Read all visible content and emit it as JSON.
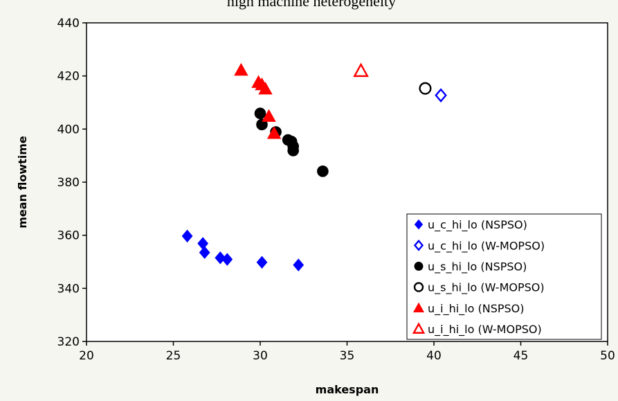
{
  "chart_data": {
    "type": "scatter",
    "title": "high machine heterogeneity",
    "xlabel": "makespan",
    "ylabel": "mean flowtime",
    "xlim": [
      20,
      50
    ],
    "ylim": [
      320,
      440
    ],
    "xticks": [
      20,
      25,
      30,
      35,
      40,
      45,
      50
    ],
    "yticks": [
      320,
      340,
      360,
      380,
      400,
      420,
      440
    ],
    "grid": false,
    "legend_position": "bottom-right",
    "series": [
      {
        "name": "u_c_hi_lo (NSPSO)",
        "marker": "diamond",
        "filled": true,
        "color": "#0000ff",
        "points": [
          [
            25.8,
            359.7
          ],
          [
            26.7,
            356.9
          ],
          [
            26.8,
            353.5
          ],
          [
            27.7,
            351.5
          ],
          [
            28.1,
            350.9
          ],
          [
            30.1,
            349.8
          ],
          [
            32.2,
            348.8
          ]
        ]
      },
      {
        "name": "u_c_hi_lo (W-MOPSO)",
        "marker": "diamond",
        "filled": false,
        "color": "#0000ff",
        "points": [
          [
            40.4,
            412.7
          ]
        ]
      },
      {
        "name": "u_s_hi_lo (NSPSO)",
        "marker": "circle",
        "filled": true,
        "color": "#000000",
        "points": [
          [
            30.0,
            405.9
          ],
          [
            30.1,
            401.7
          ],
          [
            30.9,
            398.9
          ],
          [
            31.6,
            395.9
          ],
          [
            31.8,
            395.3
          ],
          [
            31.9,
            393.5
          ],
          [
            31.9,
            391.9
          ],
          [
            33.6,
            384.1
          ]
        ]
      },
      {
        "name": "u_s_hi_lo (W-MOPSO)",
        "marker": "circle",
        "filled": false,
        "color": "#000000",
        "points": [
          [
            39.5,
            415.3
          ]
        ]
      },
      {
        "name": "u_i_hi_lo (NSPSO)",
        "marker": "triangle",
        "filled": true,
        "color": "#ff0000",
        "points": [
          [
            28.9,
            422.2
          ],
          [
            29.9,
            417.6
          ],
          [
            30.1,
            416.7
          ],
          [
            30.3,
            415.1
          ],
          [
            30.5,
            404.8
          ],
          [
            30.8,
            398.4
          ]
        ]
      },
      {
        "name": "u_i_hi_lo (W-MOPSO)",
        "marker": "triangle",
        "filled": false,
        "color": "#ff0000",
        "points": [
          [
            35.8,
            421.9
          ]
        ]
      }
    ]
  }
}
